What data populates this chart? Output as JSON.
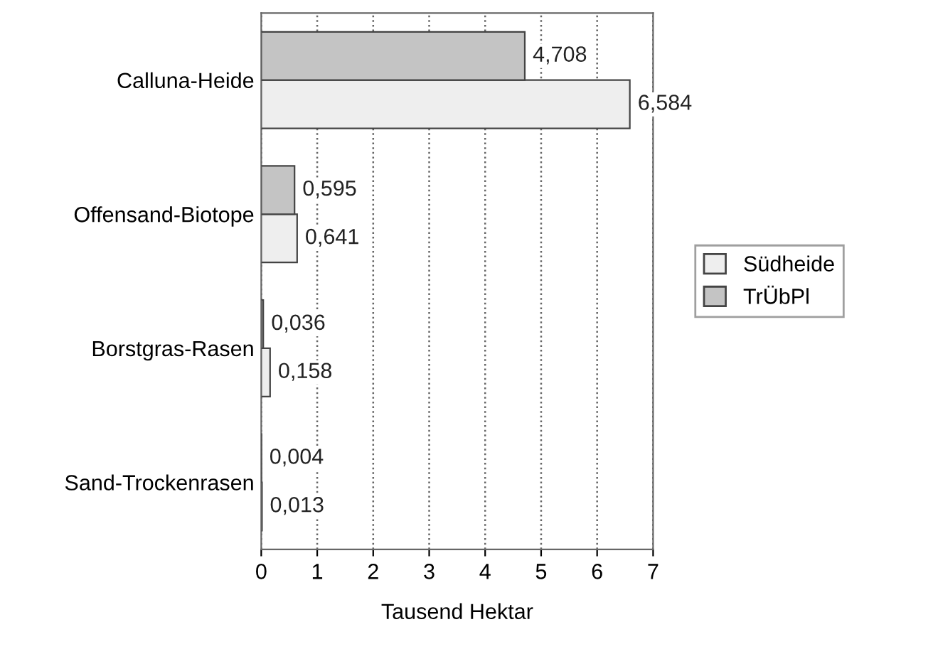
{
  "chart_data": {
    "type": "bar",
    "orientation": "horizontal",
    "xlabel": "Tausend Hektar",
    "categories": [
      "Calluna-Heide",
      "Offensand-Biotope",
      "Borstgras-Rasen",
      "Sand-Trockenrasen"
    ],
    "series": [
      {
        "name": "Südheide",
        "color": "#eeeeee",
        "values": [
          6.584,
          0.641,
          0.158,
          0.013
        ],
        "value_labels": [
          "6,584",
          "0,641",
          "0,158",
          "0,013"
        ]
      },
      {
        "name": "TrÜbPl",
        "color": "#c4c4c4",
        "values": [
          4.708,
          0.595,
          0.036,
          0.004
        ],
        "value_labels": [
          "4,708",
          "0,595",
          "0,036",
          "0,004"
        ]
      }
    ],
    "xlim": [
      0,
      7
    ],
    "xticks": [
      0,
      1,
      2,
      3,
      4,
      5,
      6,
      7
    ],
    "grid": "x",
    "legend": "right"
  }
}
